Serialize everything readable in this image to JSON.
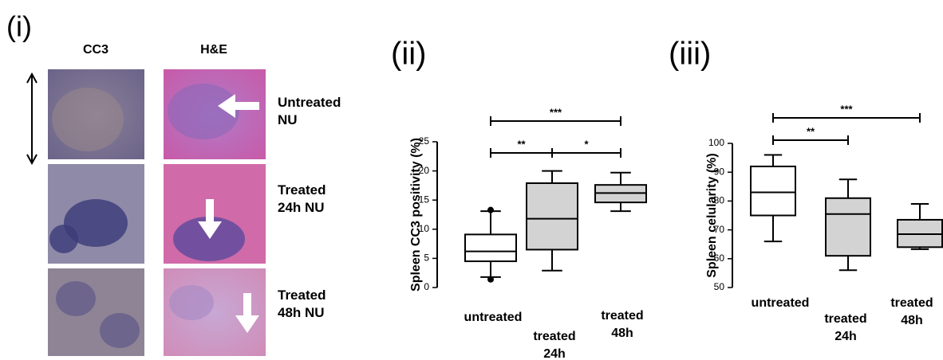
{
  "panel_i": {
    "label": "(i)",
    "columns": [
      "CC3",
      "H&E"
    ],
    "rows": [
      "Untreated NU",
      "Treated 24h NU",
      "Treated 48h NU"
    ]
  },
  "chart_data": [
    {
      "type": "box",
      "panel": "(ii)",
      "y_label": "Spleen CC3 positivity (%)",
      "categories": [
        "untreated",
        "treated 24h",
        "treated 48h"
      ],
      "colors": [
        "#ffffff",
        "#d3d3d3",
        "#d3d3d3"
      ],
      "stats": [
        {
          "min": 1.8,
          "q1": 4.5,
          "median": 6.2,
          "q3": 9.1,
          "max": 13.1,
          "outliers": [
            13.3,
            1.4
          ]
        },
        {
          "min": 2.9,
          "q1": 6.5,
          "median": 11.8,
          "q3": 17.9,
          "max": 20
        },
        {
          "min": 13.1,
          "q1": 14.6,
          "median": 16.2,
          "q3": 17.6,
          "max": 19.7
        }
      ],
      "ylim": [
        0,
        25
      ],
      "yticks": [
        0,
        5,
        10,
        15,
        20,
        25
      ],
      "significance": [
        {
          "from": "untreated",
          "to": "treated 48h",
          "label": "***"
        },
        {
          "from": "untreated",
          "to": "treated 24h",
          "label": "**"
        },
        {
          "from": "treated 24h",
          "to": "treated 48h",
          "label": "*"
        }
      ]
    },
    {
      "type": "box",
      "panel": "(iii)",
      "y_label": "Spleen celularity (%)",
      "categories": [
        "untreated",
        "treated 24h",
        "treated 48h"
      ],
      "colors": [
        "#ffffff",
        "#d3d3d3",
        "#d3d3d3"
      ],
      "stats": [
        {
          "min": 66,
          "q1": 75,
          "median": 83,
          "q3": 92,
          "max": 96
        },
        {
          "min": 56,
          "q1": 61,
          "median": 75.5,
          "q3": 81,
          "max": 87.5
        },
        {
          "min": 63.3,
          "q1": 64,
          "median": 68.5,
          "q3": 73.5,
          "max": 79
        }
      ],
      "ylim": [
        50,
        100
      ],
      "yticks": [
        50,
        60,
        70,
        80,
        90,
        100
      ],
      "significance": [
        {
          "from": "untreated",
          "to": "treated 48h",
          "label": "***"
        },
        {
          "from": "untreated",
          "to": "treated 24h",
          "label": "**"
        }
      ]
    }
  ]
}
